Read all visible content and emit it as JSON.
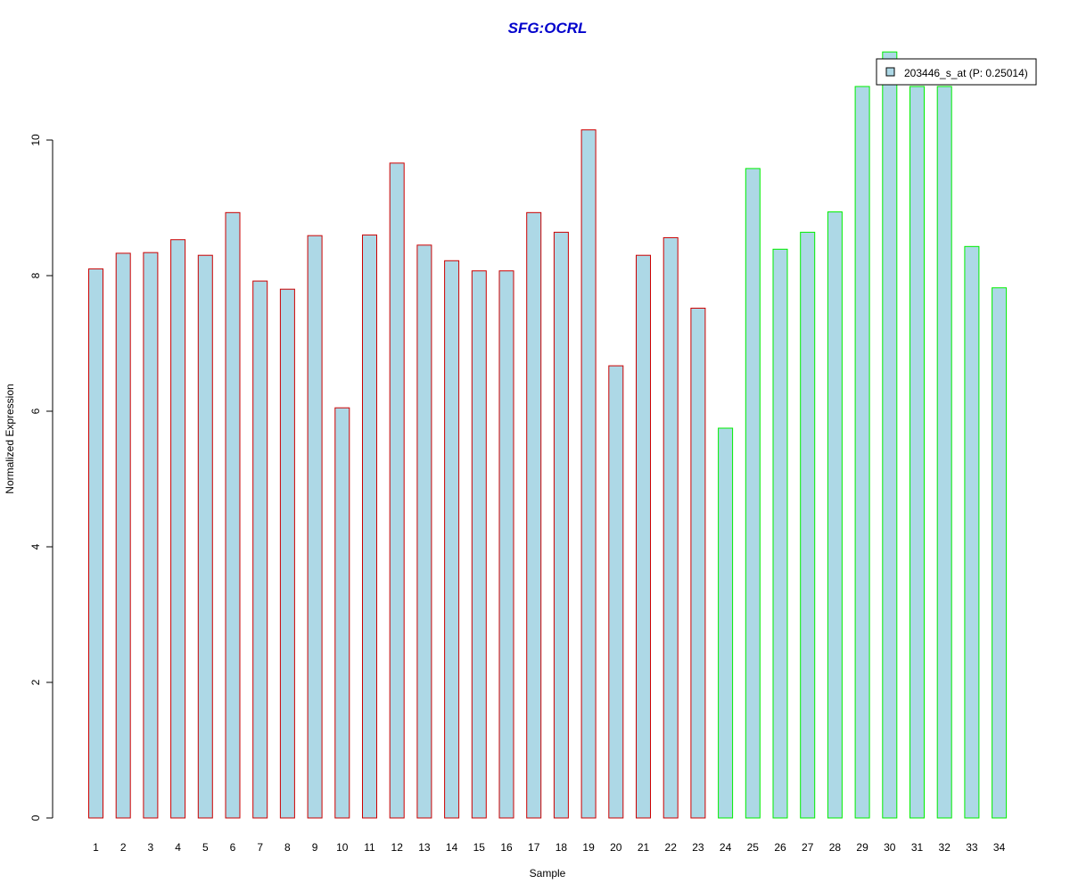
{
  "chart_data": {
    "type": "bar",
    "title": "SFG:OCRL",
    "xlabel": "Sample",
    "ylabel": "Normalized Expression",
    "categories": [
      "1",
      "2",
      "3",
      "4",
      "5",
      "6",
      "7",
      "8",
      "9",
      "10",
      "11",
      "12",
      "13",
      "14",
      "15",
      "16",
      "17",
      "18",
      "19",
      "20",
      "21",
      "22",
      "23",
      "24",
      "25",
      "26",
      "27",
      "28",
      "29",
      "30",
      "31",
      "32",
      "33",
      "34"
    ],
    "series": [
      {
        "name": "203446_s_at (P: 0.25014)",
        "values": [
          8.1,
          8.33,
          8.34,
          8.53,
          8.3,
          8.93,
          7.92,
          7.8,
          8.59,
          6.05,
          8.6,
          9.66,
          8.45,
          8.22,
          8.07,
          8.07,
          8.93,
          8.64,
          10.15,
          6.67,
          8.3,
          8.56,
          7.52,
          5.75,
          9.58,
          8.39,
          8.64,
          8.94,
          10.79,
          11.3,
          10.79,
          10.79,
          8.43,
          7.82
        ]
      }
    ],
    "group_borders": [
      "#cc0000",
      "#cc0000",
      "#cc0000",
      "#cc0000",
      "#cc0000",
      "#cc0000",
      "#cc0000",
      "#cc0000",
      "#cc0000",
      "#cc0000",
      "#cc0000",
      "#cc0000",
      "#cc0000",
      "#cc0000",
      "#cc0000",
      "#cc0000",
      "#cc0000",
      "#cc0000",
      "#cc0000",
      "#cc0000",
      "#cc0000",
      "#cc0000",
      "#cc0000",
      "#00ee00",
      "#00ee00",
      "#00ee00",
      "#00ee00",
      "#00ee00",
      "#00ee00",
      "#00ee00",
      "#00ee00",
      "#00ee00",
      "#00ee00",
      "#00ee00"
    ],
    "yticks": [
      0,
      2,
      4,
      6,
      8,
      10
    ],
    "ylim": [
      0,
      11.3
    ],
    "grid": false,
    "legend_position": "top-right",
    "colors": {
      "bar_fill": "#add8e6",
      "title": "#0000cc",
      "axis": "#000000"
    }
  }
}
